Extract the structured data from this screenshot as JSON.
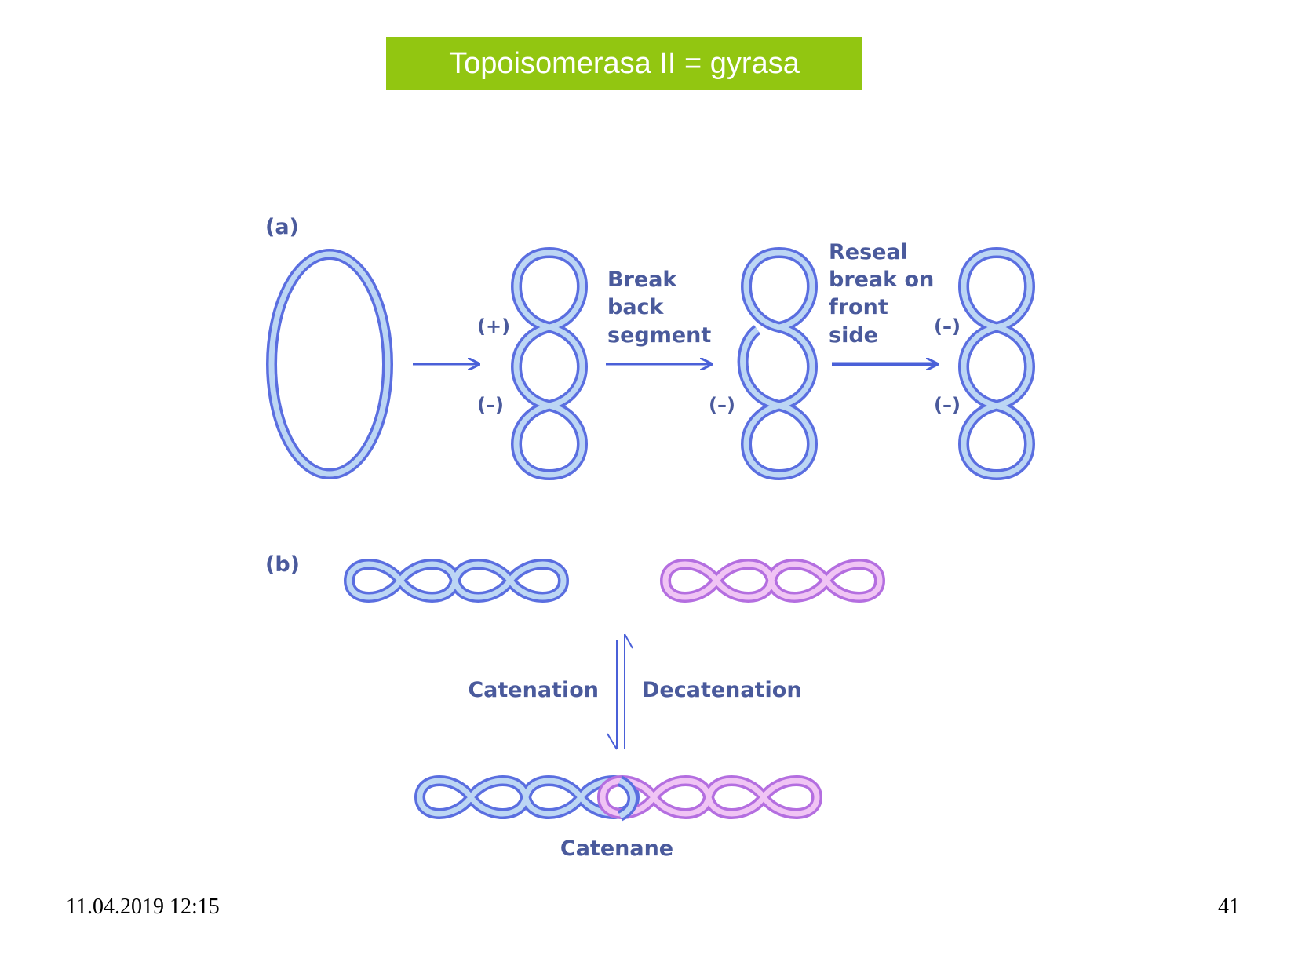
{
  "slide": {
    "title": "Topoisomerasa II = gyrasa",
    "date": "11.04.2019 12:15",
    "page_number": "41"
  },
  "figure": {
    "panel_a_label": "(a)",
    "panel_b_label": "(b)",
    "signs": {
      "plus": "(+)",
      "minus": "(–)"
    },
    "step1_label": [
      "Break",
      "back",
      "segment"
    ],
    "step2_label": [
      "Reseal",
      "break on",
      "front",
      "side"
    ],
    "catenation_label": "Catenation",
    "decatenation_label": "Decatenation",
    "catenane_label": "Catenane"
  },
  "colors": {
    "title_bar": "#92c611",
    "dna_blue": "#5a6ee0",
    "dna_pink": "#b46ee0",
    "label_text": "#4a5a9c"
  }
}
